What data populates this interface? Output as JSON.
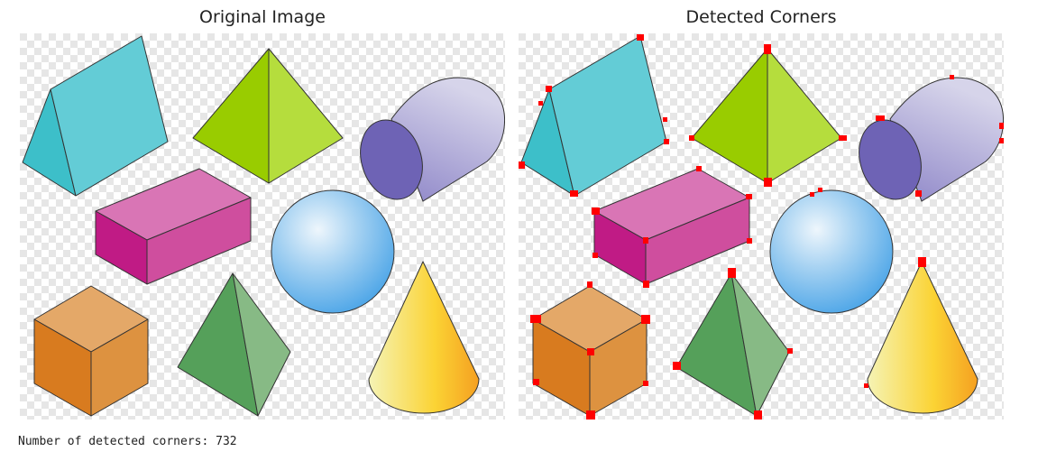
{
  "panels": {
    "left_title": "Original Image",
    "right_title": "Detected Corners"
  },
  "output": {
    "label": "Number of detected corners:",
    "count": "732"
  },
  "colors": {
    "checker_light": "#ffffff",
    "checker_dark": "#e6e6e6",
    "corner_marker": "#ff0000",
    "prism_front": "#3dbfc9",
    "prism_side": "#63ccd6",
    "pyramid_left": "#99cc00",
    "pyramid_right": "#b5dd3d",
    "cylinder_face": "#6e63b5",
    "box_front": "#c01b85",
    "box_top": "#d975b5",
    "box_side": "#cf4e9e",
    "sphere": "#5aaee8",
    "cube_top": "#e4a868",
    "cube_left": "#d87b1f",
    "cube_right": "#dd9240",
    "tetra_left": "#55a05a",
    "tetra_right": "#87ba85",
    "cone_light": "#f3f1aa",
    "cone_dark": "#f8a323"
  }
}
